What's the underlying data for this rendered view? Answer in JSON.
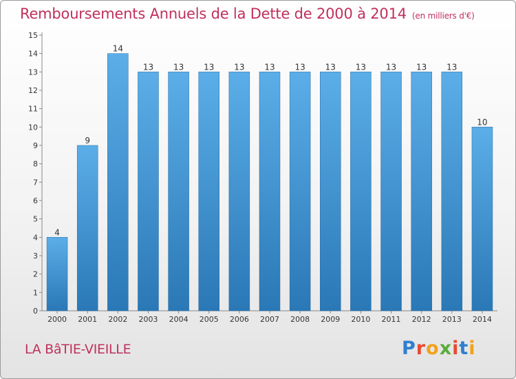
{
  "chart_title": "Remboursements Annuels de la Dette de 2000 à 2014",
  "chart_unit": "(en milliers d'€)",
  "place_name": "LA BâTIE-VIEILLE",
  "logo": {
    "text": "Proxiti",
    "letters": [
      {
        "char": "P",
        "color": "#2f7fd0"
      },
      {
        "char": "r",
        "color": "#e94a30"
      },
      {
        "char": "o",
        "color": "#f2a21a"
      },
      {
        "char": "x",
        "color": "#5aac3a"
      },
      {
        "char": "i",
        "color": "#e94a30"
      },
      {
        "char": "t",
        "color": "#2f7fd0"
      },
      {
        "char": "i",
        "color": "#f2a21a"
      }
    ]
  },
  "colors": {
    "accent": "#c0305c",
    "bar_light": "#5baee8",
    "bar_dark": "#2a78b6"
  },
  "chart_data": {
    "type": "bar",
    "title": "Remboursements Annuels de la Dette de 2000 à 2014",
    "xlabel": "",
    "ylabel": "en milliers d'€",
    "categories": [
      "2000",
      "2001",
      "2002",
      "2003",
      "2004",
      "2005",
      "2006",
      "2007",
      "2008",
      "2009",
      "2010",
      "2011",
      "2012",
      "2013",
      "2014"
    ],
    "values": [
      4,
      9,
      14,
      13,
      13,
      13,
      13,
      13,
      13,
      13,
      13,
      13,
      13,
      13,
      10
    ],
    "ylim": [
      0,
      15
    ],
    "yticks": [
      0,
      1,
      2,
      3,
      4,
      5,
      6,
      7,
      8,
      9,
      10,
      11,
      12,
      13,
      14,
      15
    ],
    "grid": false
  }
}
